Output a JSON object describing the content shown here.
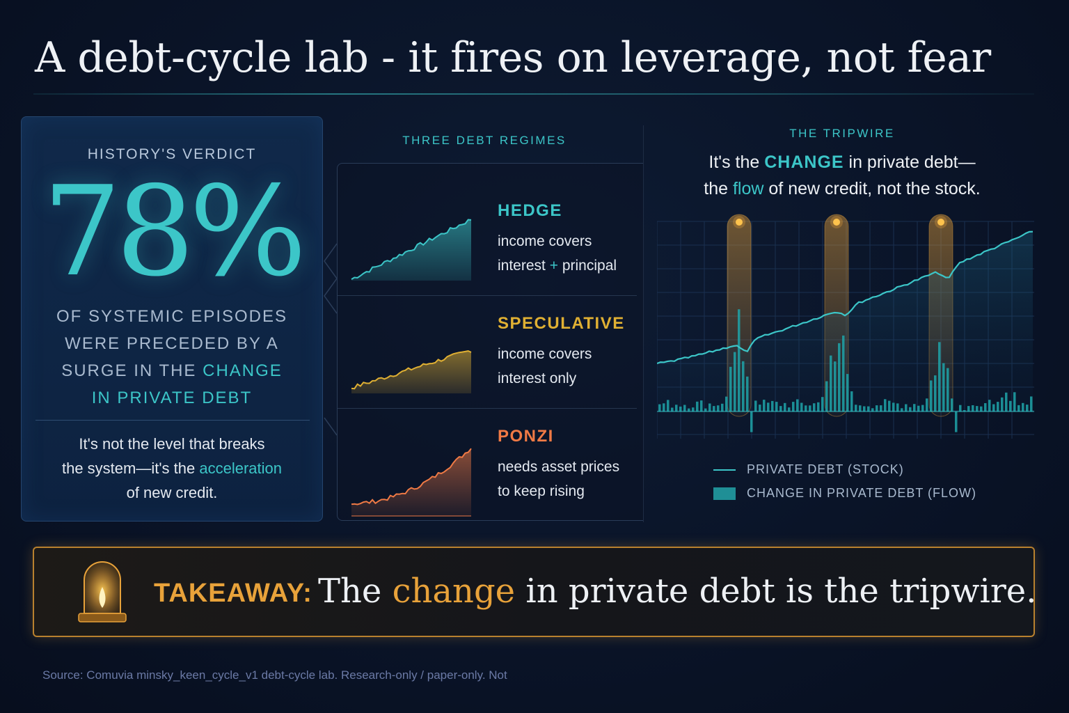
{
  "title": "A debt-cycle lab - it fires on leverage, not fear",
  "verdict": {
    "heading": "HISTORY'S VERDICT",
    "stat": "78%",
    "desc_lines": [
      "OF SYSTEMIC EPISODES",
      "WERE PRECEDED BY A",
      "SURGE IN THE",
      "CHANGE",
      "IN PRIVATE DEBT"
    ],
    "note_line1": "It's not the level that breaks",
    "note_line2_pre": "the system—it's the",
    "note_line2_kw": "acceleration",
    "note_line3": "of new credit."
  },
  "regimes": {
    "heading": "THREE DEBT REGIMES",
    "items": [
      {
        "name": "HEDGE",
        "desc_line1": "income covers",
        "desc_line2_pre": "interest",
        "desc_line2_plus": "+",
        "desc_line2_post": "principal",
        "color": "#3cc6c8"
      },
      {
        "name": "SPECULATIVE",
        "desc_line1": "income covers",
        "desc_line2_pre": "interest only",
        "desc_line2_plus": "",
        "desc_line2_post": "",
        "color": "#e0b033"
      },
      {
        "name": "PONZI",
        "desc_line1": "needs asset prices",
        "desc_line2_pre": "to keep rising",
        "desc_line2_plus": "",
        "desc_line2_post": "",
        "color": "#f07a45"
      }
    ]
  },
  "tripwire": {
    "heading": "THE TRIPWIRE",
    "caption_pre": "It's the",
    "caption_kw1": "CHANGE",
    "caption_mid": "in private debt—",
    "caption_l2_pre": "the",
    "caption_kw2": "flow",
    "caption_l2_post": "of new credit, not the stock.",
    "legend": {
      "stock": "PRIVATE DEBT (STOCK)",
      "flow": "CHANGE IN PRIVATE DEBT (FLOW)"
    }
  },
  "takeaway": {
    "label": "TAKEAWAY:",
    "text_pre": "The",
    "text_kw": "change",
    "text_post": "in private debt is the tripwire."
  },
  "source": "Source: Comuvia minsky_keen_cycle_v1 debt-cycle lab. Research-only / paper-only. Not",
  "colors": {
    "accent": "#3cc6c8",
    "amber": "#e8a23a",
    "background": "#0a1428"
  },
  "icons": {
    "lamp": "alarm-lamp-icon"
  }
}
